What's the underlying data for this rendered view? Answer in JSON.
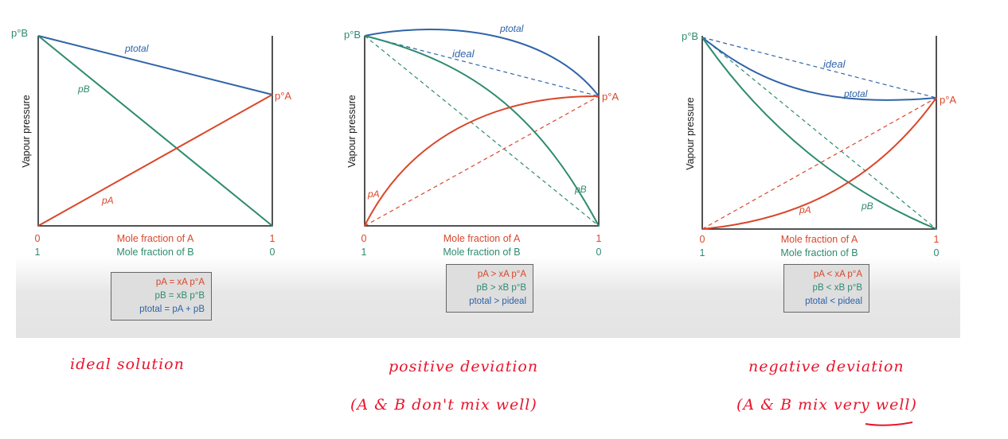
{
  "colors": {
    "a": "#d9472b",
    "b": "#2e8b6f",
    "total": "#2f63a8"
  },
  "axis": {
    "ylabel": "Vapour pressure",
    "xlabel_a": "Mole fraction of A",
    "xlabel_b": "Mole fraction of B",
    "a_left": "0",
    "a_right": "1",
    "b_left": "1",
    "b_right": "0"
  },
  "panels": [
    {
      "id": "ideal",
      "labels": {
        "pB0": "p°B",
        "pA0": "p°A",
        "total": "ptotal",
        "b": "pB",
        "a": "pA"
      },
      "box": [
        "pA = xA p°A",
        "pB = xB p°B",
        "ptotal = pA + pB"
      ],
      "note": [
        "ideal solution"
      ]
    },
    {
      "id": "positive",
      "labels": {
        "pB0": "p°B",
        "pA0": "p°A",
        "total": "ptotal",
        "ideal": "ideal",
        "b": "pB",
        "a": "pA"
      },
      "box": [
        "pA > xA p°A",
        "pB > xB p°B",
        "ptotal > pideal"
      ],
      "note": [
        "positive deviation",
        "(A & B don't mix well)"
      ]
    },
    {
      "id": "negative",
      "labels": {
        "pB0": "p°B",
        "pA0": "p°A",
        "total": "ptotal",
        "ideal": "ideal",
        "b": "pB",
        "a": "pA"
      },
      "box": [
        "pA < xA p°A",
        "pB < xB p°B",
        "ptotal < pideal"
      ],
      "note": [
        "negative deviation",
        "(A & B mix very well)"
      ]
    }
  ]
}
